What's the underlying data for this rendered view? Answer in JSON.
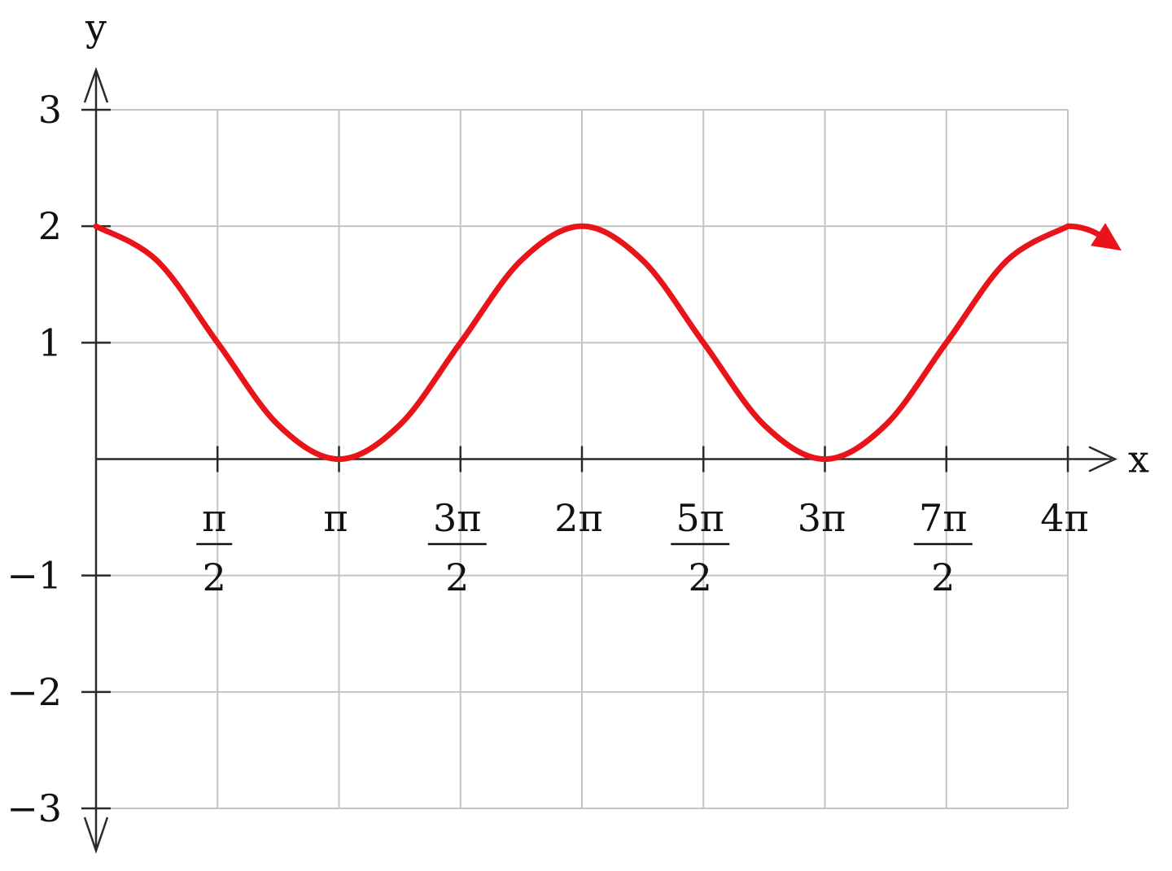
{
  "chart_data": {
    "type": "line",
    "xlabel": "x",
    "ylabel": "y",
    "xlim": [
      0,
      12.566
    ],
    "ylim": [
      -3,
      3
    ],
    "grid": true,
    "curve_color": "#e8141a",
    "x_ticks": [
      {
        "value": 1.5708,
        "num": "π",
        "den": "2"
      },
      {
        "value": 3.1416,
        "num": "π",
        "den": ""
      },
      {
        "value": 4.7124,
        "num": "3π",
        "den": "2"
      },
      {
        "value": 6.2832,
        "num": "2π",
        "den": ""
      },
      {
        "value": 7.854,
        "num": "5π",
        "den": "2"
      },
      {
        "value": 9.4248,
        "num": "3π",
        "den": ""
      },
      {
        "value": 10.9956,
        "num": "7π",
        "den": "2"
      },
      {
        "value": 12.5664,
        "num": "4π",
        "den": ""
      }
    ],
    "y_ticks": [
      {
        "value": 3,
        "label": "3"
      },
      {
        "value": 2,
        "label": "2"
      },
      {
        "value": 1,
        "label": "1"
      },
      {
        "value": -1,
        "label": "−1"
      },
      {
        "value": -2,
        "label": "−2"
      },
      {
        "value": -3,
        "label": "−3"
      }
    ],
    "series": [
      {
        "x": [
          0,
          0.7854,
          1.5708,
          2.3562,
          3.1416,
          3.927,
          4.7124,
          5.4978,
          6.2832,
          7.0686,
          7.854,
          8.6394,
          9.4248,
          10.2102,
          10.9956,
          11.781,
          12.5664
        ],
        "y": [
          2,
          1.707,
          1,
          0.293,
          0,
          0.293,
          1,
          1.707,
          2,
          1.707,
          1,
          0.293,
          0,
          0.293,
          1,
          1.707,
          2
        ]
      }
    ]
  }
}
